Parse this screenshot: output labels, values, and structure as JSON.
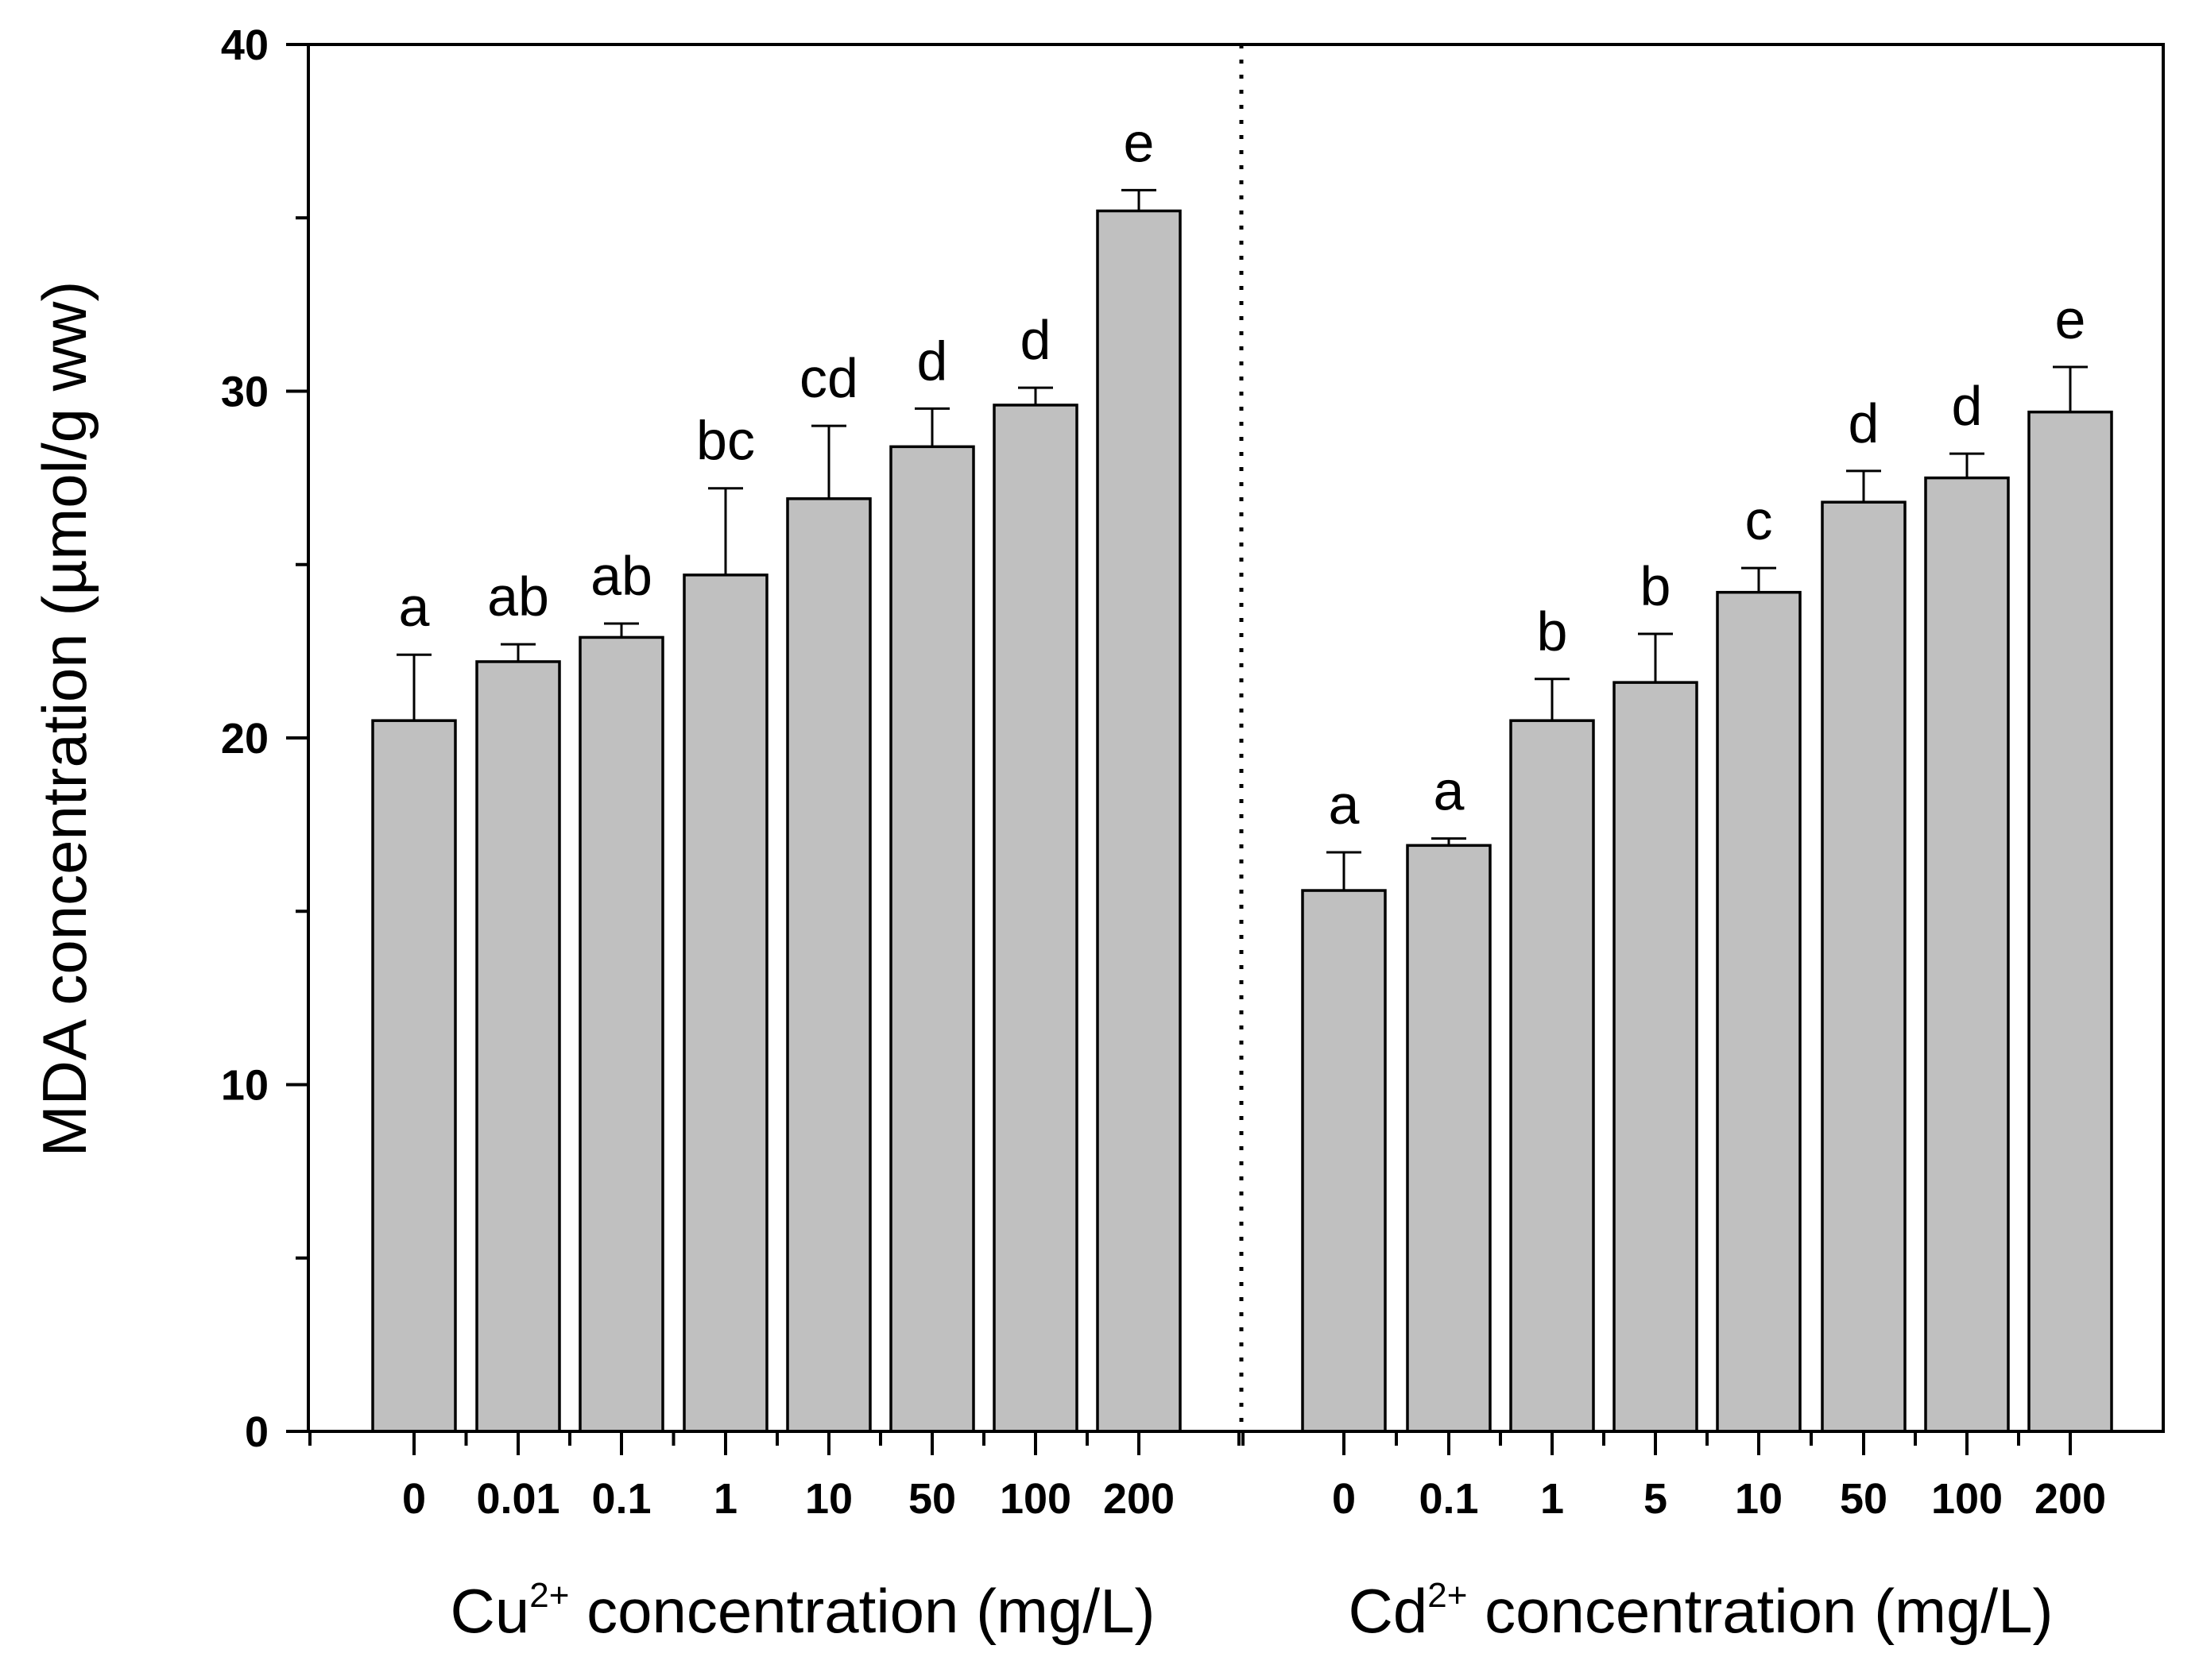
{
  "chart_data": {
    "type": "bar",
    "ylabel": "MDA concentration (µmol/g ww)",
    "ylim": [
      0,
      40
    ],
    "yticks": [
      0,
      10,
      20,
      30,
      40
    ],
    "bar_color": "#c0c0c0",
    "groups": [
      {
        "name": "Cu",
        "xlabel_prefix": "Cu",
        "xlabel_sup": "2+",
        "xlabel_suffix": " concentration (mg/L)",
        "categories": [
          "0",
          "0.01",
          "0.1",
          "1",
          "10",
          "50",
          "100",
          "200"
        ],
        "values": [
          20.5,
          22.2,
          22.9,
          24.7,
          26.9,
          28.4,
          29.6,
          35.2
        ],
        "errors": [
          1.9,
          0.5,
          0.4,
          2.5,
          2.1,
          1.1,
          0.5,
          0.6
        ],
        "labels": [
          "a",
          "ab",
          "ab",
          "bc",
          "cd",
          "d",
          "d",
          "e"
        ]
      },
      {
        "name": "Cd",
        "xlabel_prefix": "Cd",
        "xlabel_sup": "2+",
        "xlabel_suffix": " concentration (mg/L)",
        "categories": [
          "0",
          "0.1",
          "1",
          "5",
          "10",
          "50",
          "100",
          "200"
        ],
        "values": [
          15.6,
          16.9,
          20.5,
          21.6,
          24.2,
          26.8,
          27.5,
          29.4
        ],
        "errors": [
          1.1,
          0.2,
          1.2,
          1.4,
          0.7,
          0.9,
          0.7,
          1.3
        ],
        "labels": [
          "a",
          "a",
          "b",
          "b",
          "c",
          "d",
          "d",
          "e"
        ]
      }
    ]
  }
}
